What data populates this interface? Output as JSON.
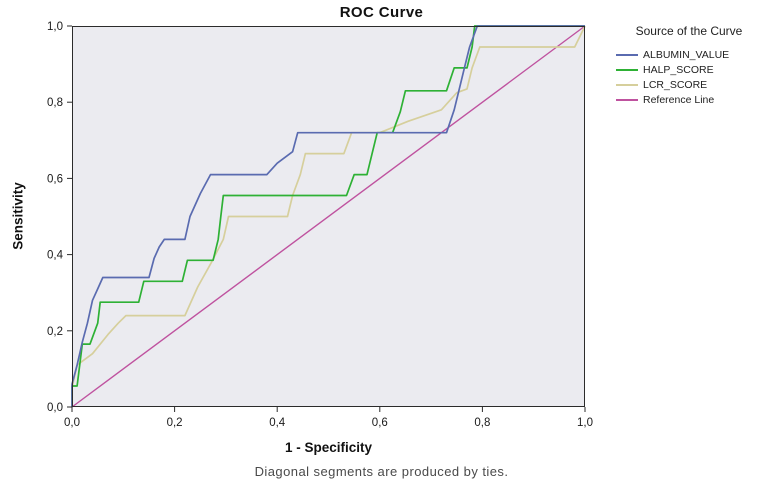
{
  "chart_data": {
    "type": "line",
    "title": "ROC Curve",
    "xlabel": "1 - Specificity",
    "ylabel": "Sensitivity",
    "caption": "Diagonal segments are produced by ties.",
    "xlim": [
      0,
      1
    ],
    "ylim": [
      0,
      1
    ],
    "grid": false,
    "legend_title": "Source of the Curve",
    "legend_position": "right",
    "plot_background": "#ebebf0",
    "frame_color": "#2b2b2b",
    "x_ticks": [
      0,
      0.2,
      0.4,
      0.6,
      0.8,
      1
    ],
    "x_tick_labels": [
      "0,0",
      "0,2",
      "0,4",
      "0,6",
      "0,8",
      "1,0"
    ],
    "y_ticks": [
      0,
      0.2,
      0.4,
      0.6,
      0.8,
      1
    ],
    "y_tick_labels": [
      "0,0",
      "0,2",
      "0,4",
      "0,6",
      "0,8",
      "1,0"
    ],
    "series": [
      {
        "name": "ALBUMIN_VALUE",
        "color": "#5a6bb0",
        "line_width": 1.7,
        "points": [
          [
            0,
            0
          ],
          [
            0,
            0.06
          ],
          [
            0.01,
            0.11
          ],
          [
            0.02,
            0.17
          ],
          [
            0.03,
            0.22
          ],
          [
            0.04,
            0.28
          ],
          [
            0.05,
            0.31
          ],
          [
            0.06,
            0.34
          ],
          [
            0.15,
            0.34
          ],
          [
            0.16,
            0.39
          ],
          [
            0.17,
            0.42
          ],
          [
            0.18,
            0.44
          ],
          [
            0.22,
            0.44
          ],
          [
            0.23,
            0.5
          ],
          [
            0.25,
            0.56
          ],
          [
            0.27,
            0.61
          ],
          [
            0.38,
            0.61
          ],
          [
            0.4,
            0.64
          ],
          [
            0.43,
            0.67
          ],
          [
            0.44,
            0.72
          ],
          [
            0.73,
            0.72
          ],
          [
            0.745,
            0.78
          ],
          [
            0.755,
            0.835
          ],
          [
            0.765,
            0.89
          ],
          [
            0.775,
            0.945
          ],
          [
            0.79,
            1
          ],
          [
            1,
            1
          ]
        ]
      },
      {
        "name": "HALP_SCORE",
        "color": "#2eb135",
        "line_width": 1.7,
        "points": [
          [
            0,
            0
          ],
          [
            0,
            0.055
          ],
          [
            0.01,
            0.055
          ],
          [
            0.015,
            0.11
          ],
          [
            0.02,
            0.165
          ],
          [
            0.035,
            0.165
          ],
          [
            0.05,
            0.22
          ],
          [
            0.055,
            0.275
          ],
          [
            0.13,
            0.275
          ],
          [
            0.14,
            0.33
          ],
          [
            0.215,
            0.33
          ],
          [
            0.225,
            0.385
          ],
          [
            0.275,
            0.385
          ],
          [
            0.285,
            0.44
          ],
          [
            0.29,
            0.5
          ],
          [
            0.295,
            0.555
          ],
          [
            0.535,
            0.555
          ],
          [
            0.55,
            0.61
          ],
          [
            0.575,
            0.61
          ],
          [
            0.585,
            0.665
          ],
          [
            0.595,
            0.72
          ],
          [
            0.625,
            0.72
          ],
          [
            0.64,
            0.775
          ],
          [
            0.65,
            0.83
          ],
          [
            0.73,
            0.83
          ],
          [
            0.745,
            0.89
          ],
          [
            0.77,
            0.89
          ],
          [
            0.78,
            0.945
          ],
          [
            0.785,
            1
          ],
          [
            1,
            1
          ]
        ]
      },
      {
        "name": "LCR_SCORE",
        "color": "#d6cf9c",
        "line_width": 1.7,
        "points": [
          [
            0,
            0
          ],
          [
            0,
            0.05
          ],
          [
            0.01,
            0.11
          ],
          [
            0.04,
            0.14
          ],
          [
            0.07,
            0.19
          ],
          [
            0.09,
            0.22
          ],
          [
            0.105,
            0.24
          ],
          [
            0.22,
            0.24
          ],
          [
            0.245,
            0.315
          ],
          [
            0.27,
            0.375
          ],
          [
            0.295,
            0.44
          ],
          [
            0.305,
            0.5
          ],
          [
            0.42,
            0.5
          ],
          [
            0.43,
            0.555
          ],
          [
            0.445,
            0.61
          ],
          [
            0.455,
            0.665
          ],
          [
            0.53,
            0.665
          ],
          [
            0.545,
            0.72
          ],
          [
            0.6,
            0.72
          ],
          [
            0.655,
            0.75
          ],
          [
            0.72,
            0.78
          ],
          [
            0.75,
            0.825
          ],
          [
            0.77,
            0.835
          ],
          [
            0.78,
            0.89
          ],
          [
            0.795,
            0.945
          ],
          [
            0.98,
            0.945
          ],
          [
            1,
            1
          ]
        ]
      },
      {
        "name": "Reference Line",
        "color": "#bf529f",
        "line_width": 1.4,
        "points": [
          [
            0,
            0
          ],
          [
            1,
            1
          ]
        ]
      }
    ]
  }
}
